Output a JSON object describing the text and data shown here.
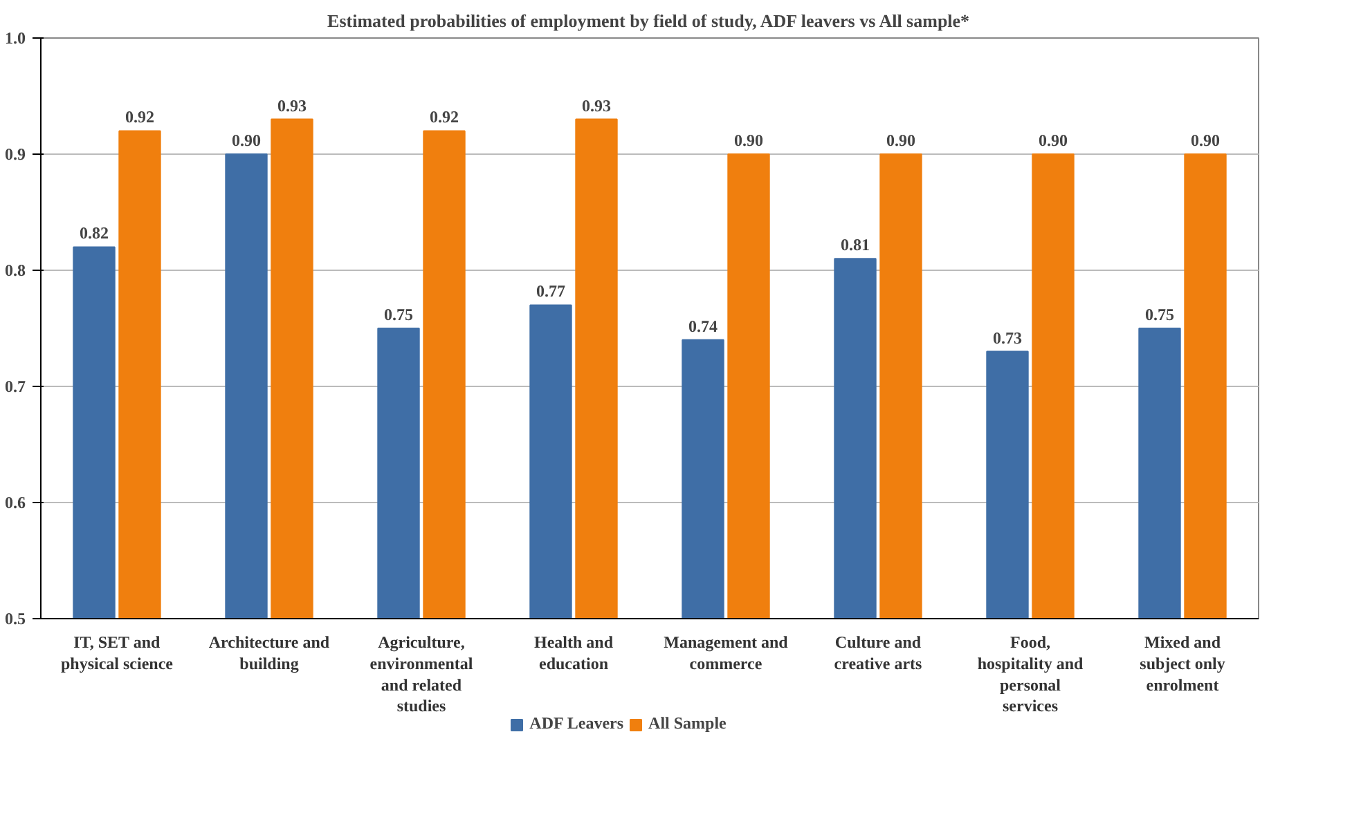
{
  "chart_data": {
    "type": "bar",
    "title": "Estimated probabilities of employment by field of study, ADF leavers vs All sample*",
    "categories": [
      "IT, SET and physical science",
      "Architecture and building",
      "Agriculture, environmental and related studies",
      "Health and education",
      "Management and commerce",
      "Culture and creative arts",
      "Food, hospitality and personal services",
      "Mixed and subject only enrolment"
    ],
    "series": [
      {
        "name": "ADF Leavers",
        "color": "#3f6ea6",
        "values": [
          0.82,
          0.9,
          0.75,
          0.77,
          0.74,
          0.81,
          0.73,
          0.75
        ],
        "value_labels": [
          "0.82",
          "0.90",
          "0.75",
          "0.77",
          "0.74",
          "0.81",
          "0.73",
          "0.75"
        ]
      },
      {
        "name": "All Sample",
        "color": "#f07f0e",
        "values": [
          0.92,
          0.93,
          0.92,
          0.93,
          0.9,
          0.9,
          0.9,
          0.9
        ],
        "value_labels": [
          "0.92",
          "0.93",
          "0.92",
          "0.93",
          "0.90",
          "0.90",
          "0.90",
          "0.90"
        ]
      }
    ],
    "ylim": [
      0.5,
      1.0
    ],
    "yticks": [
      {
        "value": 0.5,
        "label": "0.5"
      },
      {
        "value": 0.6,
        "label": "0.6"
      },
      {
        "value": 0.7,
        "label": "0.7"
      },
      {
        "value": 0.8,
        "label": "0.8"
      },
      {
        "value": 0.9,
        "label": "0.9"
      },
      {
        "value": 1.0,
        "label": "1.0"
      }
    ],
    "grid": "y",
    "legend": "bottom"
  }
}
